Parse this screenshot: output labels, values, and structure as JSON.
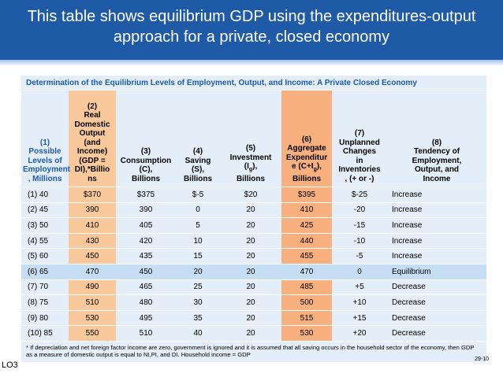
{
  "slide": {
    "title": "This table shows equilibrium GDP using the expenditures-output approach for a private, closed economy",
    "lo_label": "LO3",
    "slide_number": "29-10"
  },
  "table": {
    "caption": "Determination of the Equilibrium Levels of Employment, Output, and Income: A Private Closed Economy",
    "headers": {
      "c1": "(1) Possible Levels of Employment , Millions",
      "c2": "(2) Real Domestic Output (and Income) (GDP = DI),*Billio ns",
      "c3": "(3) Consumption (C), Billions",
      "c4": "(4) Saving (S), Billions",
      "c5": "(5) Investment (Ig), Billions",
      "c6": "(6) Aggregate Expenditur e (C+Ig), Billions",
      "c7": "(7) Unplanned Changes in Inventories , (+ or -)",
      "c8": "(8) Tendency of Employment, Output, and Income"
    },
    "rows": [
      {
        "c1": "(1) 40",
        "c2": "$370",
        "c3": "$375",
        "c4": "$-5",
        "c5": "$20",
        "c6": "$395",
        "c7": "$-25",
        "c8": "Increase"
      },
      {
        "c1": "(2) 45",
        "c2": "390",
        "c3": "390",
        "c4": "0",
        "c5": "20",
        "c6": "410",
        "c7": "-20",
        "c8": "Increase"
      },
      {
        "c1": "(3) 50",
        "c2": "410",
        "c3": "405",
        "c4": "5",
        "c5": "20",
        "c6": "425",
        "c7": "-15",
        "c8": "Increase"
      },
      {
        "c1": "(4) 55",
        "c2": "430",
        "c3": "420",
        "c4": "10",
        "c5": "20",
        "c6": "440",
        "c7": "-10",
        "c8": "Increase"
      },
      {
        "c1": "(5) 60",
        "c2": "450",
        "c3": "435",
        "c4": "15",
        "c5": "20",
        "c6": "455",
        "c7": "-5",
        "c8": "Increase"
      },
      {
        "c1": "(6) 65",
        "c2": "470",
        "c3": "450",
        "c4": "20",
        "c5": "20",
        "c6": "470",
        "c7": "0",
        "c8": "Equilibrium"
      },
      {
        "c1": "(7) 70",
        "c2": "490",
        "c3": "465",
        "c4": "25",
        "c5": "20",
        "c6": "485",
        "c7": "+5",
        "c8": "Decrease"
      },
      {
        "c1": "(8) 75",
        "c2": "510",
        "c3": "480",
        "c4": "30",
        "c5": "20",
        "c6": "500",
        "c7": "+10",
        "c8": "Decrease"
      },
      {
        "c1": "(9) 80",
        "c2": "530",
        "c3": "495",
        "c4": "35",
        "c5": "20",
        "c6": "515",
        "c7": "+15",
        "c8": "Decrease"
      },
      {
        "c1": "(10) 85",
        "c2": "550",
        "c3": "510",
        "c4": "40",
        "c5": "20",
        "c6": "530",
        "c7": "+20",
        "c8": "Decrease"
      }
    ],
    "footnote": "* If depreciation and net foreign factor income are zero, government is ignored and it is assumed that all saving occurs in the household sector of the economy, then GDP as a measure of domestic output is equal to NI,PI, and DI. Household income = GDP",
    "highlight_row": 5
  },
  "colors": {
    "header_blue": "#1f5aa6",
    "table_bg": "#e3eef9",
    "col2_bg": "#f9c99b",
    "col6_bg": "#f9b07f",
    "equilibrium_row_bg": "#c6def4"
  }
}
